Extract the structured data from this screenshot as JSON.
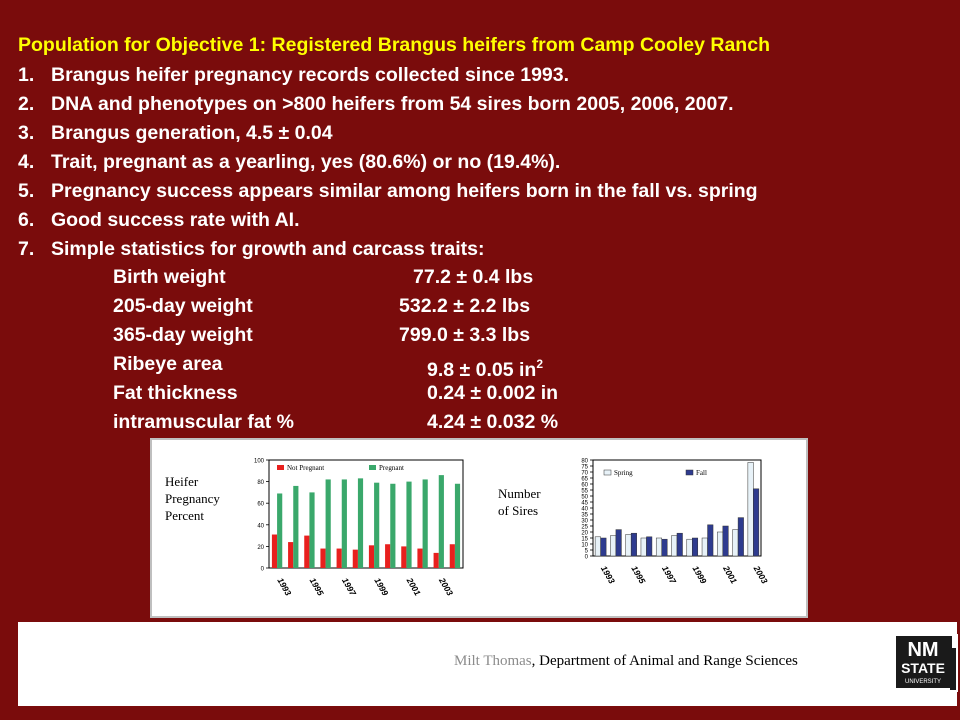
{
  "slide": {
    "title": "Population for Objective 1: Registered Brangus heifers from Camp Cooley Ranch",
    "items": [
      {
        "num": "1.",
        "text": "Brangus heifer pregnancy records collected since 1993."
      },
      {
        "num": "2.",
        "text": "DNA and phenotypes on >800 heifers from 54 sires born 2005, 2006, 2007."
      },
      {
        "num": "3.",
        "text": "Brangus generation, 4.5 ± 0.04"
      },
      {
        "num": "4.",
        "text": "Trait, pregnant as a yearling, yes (80.6%) or no (19.4%)."
      },
      {
        "num": "5.",
        "text": "Pregnancy success appears similar among heifers born in the fall vs. spring"
      },
      {
        "num": "6.",
        "text": "Good success rate with AI."
      },
      {
        "num": "7.",
        "text": "Simple statistics for growth and carcass traits:"
      }
    ],
    "stats": [
      {
        "label": "Birth weight",
        "value": "77.2 ± 0.4 lbs",
        "sup": ""
      },
      {
        "label": "205-day weight",
        "value": "532.2 ± 2.2 lbs",
        "sup": ""
      },
      {
        "label": "365-day weight",
        "value": "799.0 ± 3.3 lbs",
        "sup": ""
      },
      {
        "label": "Ribeye area",
        "value": "9.8 ± 0.05 in",
        "sup": "2"
      },
      {
        "label": "Fat thickness",
        "value": "0.24 ± 0.002 in",
        "sup": ""
      },
      {
        "label": "intramuscular fat %",
        "value": "4.24 ± 0.032 %",
        "sup": ""
      }
    ]
  },
  "footer": {
    "author": "Milt Thomas",
    "affiliation": ", Department of Animal and Range Sciences",
    "logo_line1": "NM",
    "logo_line2": "STATE",
    "logo_line3": "UNIVERSITY"
  },
  "colors": {
    "background": "#7a0c0c",
    "title": "#ffff00",
    "not_pregnant": "#e8201e",
    "pregnant": "#3aa86b",
    "spring": "#e8f2f8",
    "fall": "#2e3b8f"
  },
  "chart_data": [
    {
      "type": "bar",
      "side_label": [
        "Heifer",
        "Pregnancy",
        "Percent"
      ],
      "categories": [
        "1993",
        "1994",
        "1995",
        "1996",
        "1997",
        "1998",
        "1999",
        "2000",
        "2001",
        "2002",
        "2003",
        "2004"
      ],
      "tick_labels": [
        "1993",
        "1995",
        "1997",
        "1999",
        "2001",
        "2003"
      ],
      "ylim": [
        0,
        100
      ],
      "yticks": [
        0,
        20,
        40,
        60,
        80,
        100
      ],
      "legend_position": "top",
      "series": [
        {
          "name": "Not Pregnant",
          "color": "#e8201e",
          "values": [
            31,
            24,
            30,
            18,
            18,
            17,
            21,
            22,
            20,
            18,
            14,
            22
          ]
        },
        {
          "name": "Pregnant",
          "color": "#3aa86b",
          "values": [
            69,
            76,
            70,
            82,
            82,
            83,
            79,
            78,
            80,
            82,
            86,
            78
          ]
        }
      ]
    },
    {
      "type": "bar",
      "side_label": [
        "Number",
        "of Sires"
      ],
      "categories": [
        "1993",
        "1994",
        "1995",
        "1996",
        "1997",
        "1998",
        "1999",
        "2000",
        "2001",
        "2002",
        "2003"
      ],
      "tick_labels": [
        "1993",
        "1995",
        "1997",
        "1999",
        "2001",
        "2003"
      ],
      "ylim": [
        0,
        80
      ],
      "yticks": [
        0,
        5,
        10,
        15,
        20,
        25,
        30,
        35,
        40,
        45,
        50,
        55,
        60,
        65,
        70,
        75,
        80
      ],
      "legend_position": "top",
      "series": [
        {
          "name": "Spring",
          "color": "#e8f2f8",
          "values": [
            16,
            17,
            18,
            15,
            15,
            17,
            14,
            15,
            20,
            22,
            78
          ]
        },
        {
          "name": "Fall",
          "color": "#2e3b8f",
          "values": [
            15,
            22,
            19,
            16,
            14,
            19,
            15,
            26,
            25,
            32,
            56
          ]
        }
      ]
    }
  ]
}
